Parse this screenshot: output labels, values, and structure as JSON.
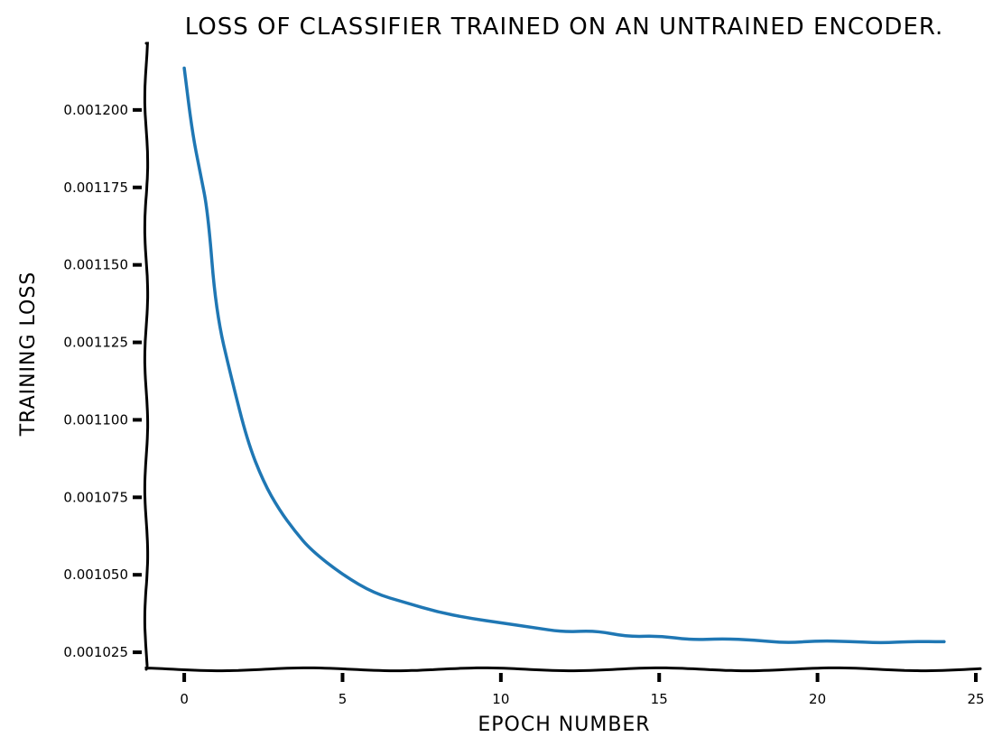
{
  "chart_data": {
    "type": "line",
    "title": "LOSS OF CLASSIFIER TRAINED ON AN UNTRAINED ENCODER.",
    "xlabel": "EPOCH NUMBER",
    "ylabel": "TRAINING LOSS",
    "xlim": [
      -1.2,
      25.2
    ],
    "ylim": [
      0.0010195,
      0.0012215
    ],
    "xticks": [
      0,
      5,
      10,
      15,
      20,
      25
    ],
    "xtick_labels": [
      "0",
      "5",
      "10",
      "15",
      "20",
      "25"
    ],
    "yticks": [
      0.001025,
      0.00105,
      0.001075,
      0.0011,
      0.001125,
      0.00115,
      0.001175,
      0.0012
    ],
    "ytick_labels": [
      "0.001025",
      "0.001050",
      "0.001075",
      "0.001100",
      "0.001125",
      "0.001150",
      "0.001175",
      "0.001200"
    ],
    "grid": false,
    "line_color": "#1f77b4",
    "series": [
      {
        "x": [
          0,
          0.25,
          0.5,
          0.75,
          1,
          1.5,
          2,
          2.5,
          3,
          3.5,
          4,
          5,
          6,
          7,
          8,
          9,
          10,
          11,
          12,
          13,
          14,
          15,
          16,
          17,
          18,
          19,
          20,
          21,
          22,
          23,
          24
        ],
        "y": [
          0.0012135,
          0.001193,
          0.00118,
          0.001167,
          0.001135,
          0.001113,
          0.001093,
          0.00108,
          0.001071,
          0.001064,
          0.001058,
          0.00105,
          0.001044,
          0.001041,
          0.001038,
          0.001036,
          0.0010345,
          0.001033,
          0.0010315,
          0.001032,
          0.00103,
          0.0010303,
          0.001029,
          0.0010294,
          0.001029,
          0.001028,
          0.0010287,
          0.0010285,
          0.001028,
          0.0010285,
          0.0010284
        ]
      }
    ]
  }
}
